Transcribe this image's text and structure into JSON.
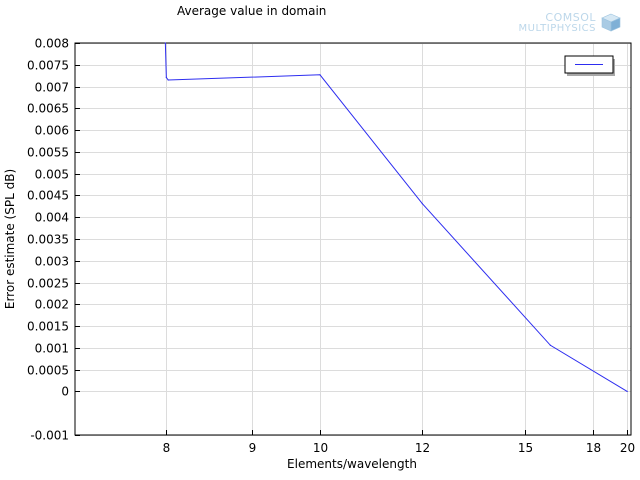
{
  "chart_data": {
    "type": "line",
    "title": "Average value in domain",
    "xlabel": "Elements/wavelength",
    "ylabel": "Error estimate (SPL dB)",
    "x_scale": "reciprocal",
    "x_ticks": [
      8,
      9,
      10,
      12,
      15,
      18,
      20
    ],
    "xlim": [
      7.15,
      20.25
    ],
    "ylim": [
      -0.001,
      0.008
    ],
    "y_ticks": [
      -0.001,
      0,
      0.0005,
      0.001,
      0.0015,
      0.002,
      0.0025,
      0.003,
      0.0035,
      0.004,
      0.0045,
      0.005,
      0.0055,
      0.006,
      0.0065,
      0.007,
      0.0075,
      0.008
    ],
    "y_tick_labels": [
      "-0.001",
      "0",
      "0.0005",
      "0.001",
      "0.0015",
      "0.002",
      "0.0025",
      "0.003",
      "0.0035",
      "0.004",
      "0.0045",
      "0.005",
      "0.0055",
      "0.006",
      "0.0065",
      "0.007",
      "0.0075",
      "0.008"
    ],
    "grid": true,
    "legend_position": "top-right",
    "series": [
      {
        "color": "#2d2df0",
        "x": [
          7.99,
          8.0,
          8.02,
          10.0,
          12.0,
          16.0,
          20.0
        ],
        "y": [
          0.008,
          0.00721,
          0.00715,
          0.00727,
          0.00431,
          0.00106,
          0.0
        ]
      }
    ]
  },
  "logo": {
    "line1": "COMSOL",
    "line2": "MULTIPHYSICS",
    "color": "#bcd7ea"
  }
}
